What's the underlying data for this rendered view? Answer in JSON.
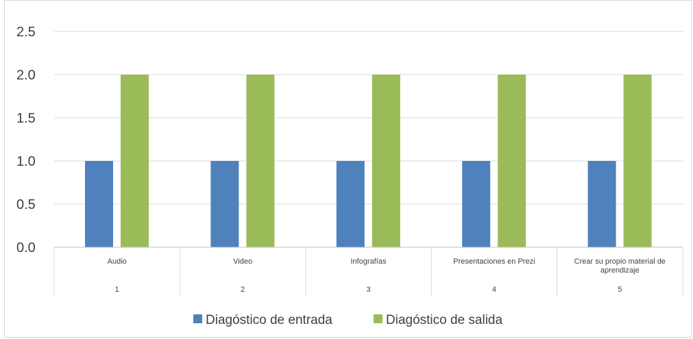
{
  "chart_data": {
    "type": "bar",
    "title": "",
    "xlabel": "",
    "ylabel": "",
    "ylim": [
      0,
      2.5
    ],
    "yticks": [
      "0.0",
      "0.5",
      "1.0",
      "1.5",
      "2.0",
      "2.5"
    ],
    "grid": true,
    "legend_position": "bottom",
    "categories": [
      {
        "label": "Audio",
        "number": "1"
      },
      {
        "label": "Video",
        "number": "2"
      },
      {
        "label": "Infografías",
        "number": "3"
      },
      {
        "label": "Presentaciones en Prezi",
        "number": "4"
      },
      {
        "label": "Crear su propio material de aprendizaje",
        "number": "5"
      }
    ],
    "series": [
      {
        "name": "Diagóstico de entrada",
        "color": "#4f81bd",
        "values": [
          1,
          1,
          1,
          1,
          1
        ]
      },
      {
        "name": "Diagóstico de salida",
        "color": "#9bbb59",
        "values": [
          2,
          2,
          2,
          2,
          2
        ]
      }
    ]
  }
}
